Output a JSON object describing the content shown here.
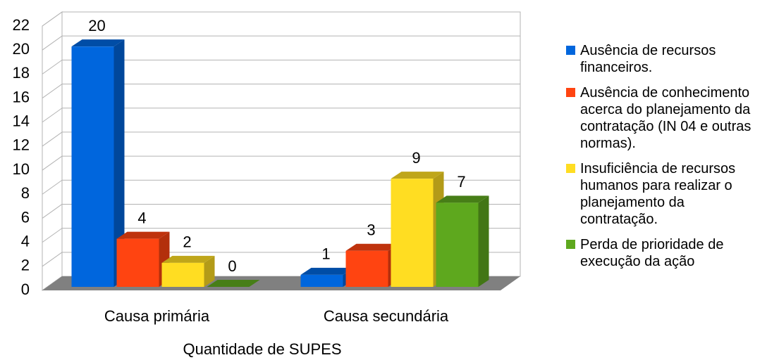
{
  "chart_data": {
    "type": "bar3d",
    "categories": [
      "Causa primária",
      "Causa secundária"
    ],
    "series": [
      {
        "name": "Ausência de recursos financeiros.",
        "color": "#0066dd",
        "values": [
          20,
          1
        ]
      },
      {
        "name": "Ausência de conhecimento acerca do planejamento da contratação (IN 04 e outras normas).",
        "color": "#ff4411",
        "values": [
          4,
          3
        ]
      },
      {
        "name": "Insuficiência de recursos humanos para realizar o planejamento da contratação.",
        "color": "#ffdd22",
        "values": [
          2,
          9
        ]
      },
      {
        "name": "Perda de prioridade de execução da ação",
        "color": "#5ea81e",
        "values": [
          0,
          7
        ]
      }
    ],
    "xlabel": "Quantidade de SUPES",
    "ylim": [
      0,
      22
    ],
    "yticks": [
      0,
      2,
      4,
      6,
      8,
      10,
      12,
      14,
      16,
      18,
      20,
      22
    ],
    "grid": true,
    "legend": "right"
  }
}
